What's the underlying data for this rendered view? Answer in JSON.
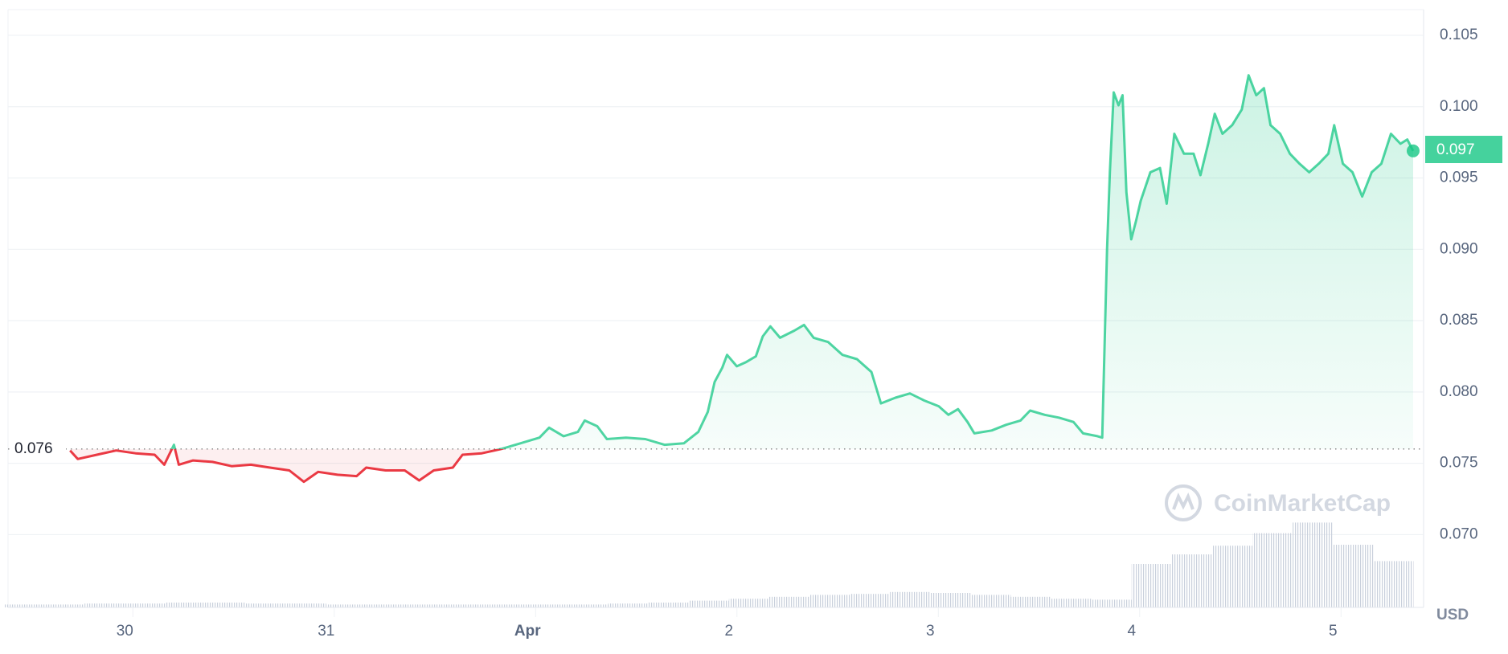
{
  "chart_data": {
    "type": "line",
    "x": [
      -0.272,
      -0.234,
      -0.139,
      -0.043,
      0.053,
      0.148,
      0.196,
      0.244,
      0.268,
      0.339,
      0.435,
      0.53,
      0.626,
      0.721,
      0.817,
      0.889,
      0.96,
      1.056,
      1.151,
      1.199,
      1.295,
      1.39,
      1.462,
      1.534,
      1.629,
      1.677,
      1.773,
      1.868,
      1.964,
      2.059,
      2.107,
      2.179,
      2.25,
      2.284,
      2.346,
      2.394,
      2.489,
      2.585,
      2.68,
      2.776,
      2.848,
      2.895,
      2.929,
      2.967,
      2.991,
      3.039,
      3.086,
      3.134,
      3.168,
      3.206,
      3.254,
      3.325,
      3.373,
      3.421,
      3.493,
      3.564,
      3.636,
      3.708,
      3.755,
      3.827,
      3.899,
      3.97,
      4.042,
      4.09,
      4.138,
      4.185,
      4.219,
      4.305,
      4.377,
      4.448,
      4.496,
      4.568,
      4.639,
      4.711,
      4.759,
      4.83,
      4.854,
      4.878,
      4.892,
      4.911,
      4.935,
      4.955,
      4.974,
      4.998,
      5.022,
      5.045,
      5.093,
      5.141,
      5.174,
      5.212,
      5.26,
      5.308,
      5.342,
      5.38,
      5.413,
      5.451,
      5.499,
      5.547,
      5.581,
      5.619,
      5.657,
      5.69,
      5.738,
      5.786,
      5.834,
      5.882,
      5.929,
      5.977,
      6.006,
      6.049,
      6.097,
      6.145,
      6.192,
      6.24,
      6.288,
      6.335,
      6.369,
      6.398
    ],
    "values": [
      0.0759,
      0.0753,
      0.0756,
      0.0759,
      0.0757,
      0.0756,
      0.0749,
      0.0763,
      0.0749,
      0.0752,
      0.0751,
      0.0748,
      0.0749,
      0.0747,
      0.0745,
      0.0737,
      0.0744,
      0.0742,
      0.0741,
      0.0747,
      0.0745,
      0.0745,
      0.0738,
      0.0745,
      0.0747,
      0.0756,
      0.0757,
      0.076,
      0.0764,
      0.0768,
      0.0775,
      0.0769,
      0.0772,
      0.078,
      0.0776,
      0.0767,
      0.0768,
      0.0767,
      0.0763,
      0.0764,
      0.0772,
      0.0786,
      0.0807,
      0.0817,
      0.0826,
      0.0818,
      0.0821,
      0.0825,
      0.0839,
      0.0846,
      0.0838,
      0.0843,
      0.0847,
      0.0838,
      0.0835,
      0.0826,
      0.0823,
      0.0814,
      0.0792,
      0.0796,
      0.0799,
      0.0794,
      0.079,
      0.0784,
      0.0788,
      0.0779,
      0.0771,
      0.0773,
      0.0777,
      0.078,
      0.0787,
      0.0784,
      0.0782,
      0.0779,
      0.0771,
      0.0769,
      0.0768,
      0.09,
      0.0954,
      0.101,
      0.1001,
      0.1008,
      0.094,
      0.0907,
      0.092,
      0.0934,
      0.0954,
      0.0957,
      0.0932,
      0.0981,
      0.0967,
      0.0967,
      0.0952,
      0.0974,
      0.0995,
      0.0981,
      0.0987,
      0.0998,
      0.1022,
      0.1008,
      0.1013,
      0.0987,
      0.0981,
      0.0967,
      0.096,
      0.0954,
      0.096,
      0.0967,
      0.0987,
      0.096,
      0.0954,
      0.0937,
      0.0954,
      0.096,
      0.0981,
      0.0974,
      0.0977,
      0.0969
    ],
    "up_color": "#16c784",
    "down_color": "#ea3943",
    "reference": 0.076,
    "last_value": 0.097,
    "xlim": [
      -0.58,
      6.45
    ],
    "xticks": [
      {
        "value": 0,
        "label": "30"
      },
      {
        "value": 1,
        "label": "31"
      },
      {
        "value": 2,
        "label": "Apr"
      },
      {
        "value": 3,
        "label": "2"
      },
      {
        "value": 4,
        "label": "3"
      },
      {
        "value": 5,
        "label": "4"
      },
      {
        "value": 6,
        "label": "5"
      }
    ],
    "ylim": [
      0.0649,
      0.1068
    ],
    "yticks": [
      {
        "value": 0.07,
        "label": "0.070"
      },
      0.075,
      {
        "value": 0.08,
        "label": "0.080"
      },
      0.085,
      {
        "value": 0.09,
        "label": "0.090"
      },
      0.095,
      {
        "value": 0.1,
        "label": "0.100"
      },
      0.105
    ],
    "grid": true,
    "currency": "USD",
    "watermark": "CoinMarketCap",
    "volume": {
      "color": "#c9d0dc",
      "x": [
        -0.5,
        -0.3,
        -0.1,
        0.1,
        0.3,
        0.5,
        0.7,
        0.9,
        1.1,
        1.3,
        1.5,
        1.7,
        1.9,
        2.1,
        2.3,
        2.5,
        2.7,
        2.9,
        3.1,
        3.3,
        3.5,
        3.7,
        3.9,
        4.1,
        4.3,
        4.5,
        4.7,
        4.9,
        5.1,
        5.3,
        5.5,
        5.7,
        5.9,
        6.1,
        6.3
      ],
      "values": [
        3,
        3,
        4,
        4,
        5,
        5,
        4,
        4,
        3,
        3,
        3,
        3,
        3,
        3,
        3,
        4,
        5,
        7,
        9,
        11,
        13,
        14,
        16,
        15,
        13,
        11,
        9,
        8,
        45,
        55,
        64,
        77,
        88,
        65,
        48
      ]
    }
  }
}
